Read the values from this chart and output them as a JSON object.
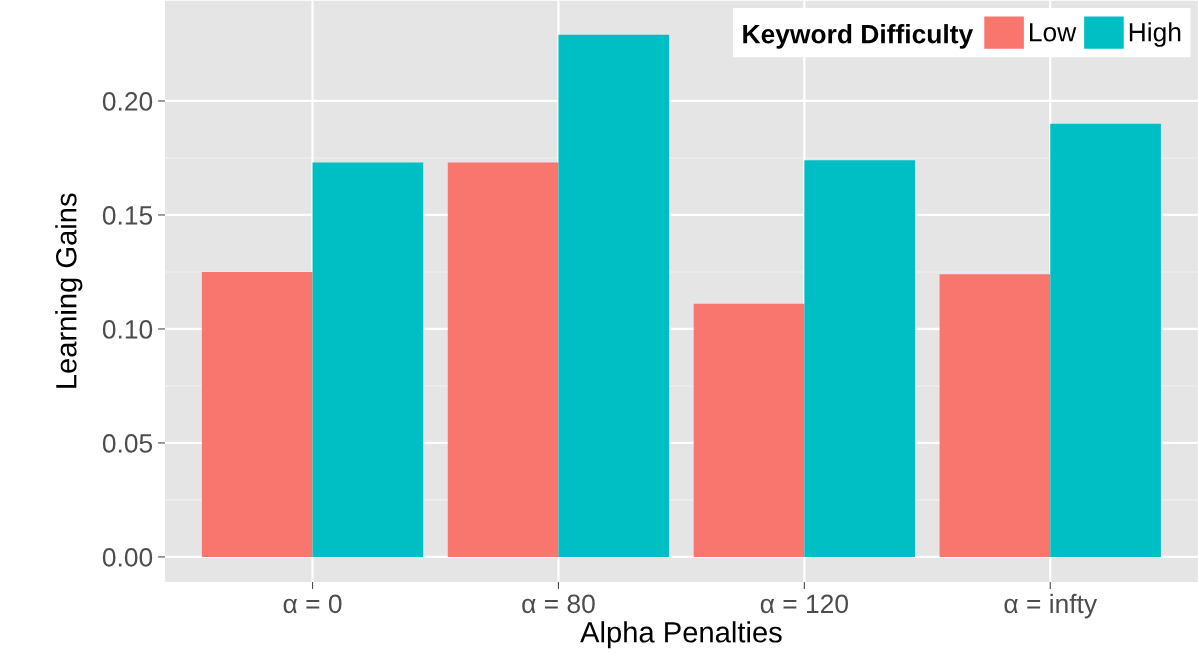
{
  "chart_data": {
    "type": "bar",
    "xlabel": "Alpha Penalties",
    "ylabel": "Learning Gains",
    "legend_title": "Keyword Difficulty",
    "categories": [
      "α = 0",
      "α = 80",
      "α = 120",
      "α = infty"
    ],
    "series": [
      {
        "name": "Low",
        "color": "#f8766d",
        "values": [
          0.125,
          0.173,
          0.111,
          0.124
        ]
      },
      {
        "name": "High",
        "color": "#00bfc4",
        "values": [
          0.173,
          0.229,
          0.174,
          0.19
        ]
      }
    ],
    "ylim": [
      -0.011,
      0.244
    ],
    "yticks": [
      {
        "value": 0,
        "label": "0.00"
      },
      {
        "value": 0.05,
        "label": "0.05"
      },
      {
        "value": 0.1,
        "label": "0.10"
      },
      {
        "value": 0.15,
        "label": "0.15"
      },
      {
        "value": 0.2,
        "label": "0.20"
      }
    ],
    "grid": true,
    "legend": "top right"
  }
}
